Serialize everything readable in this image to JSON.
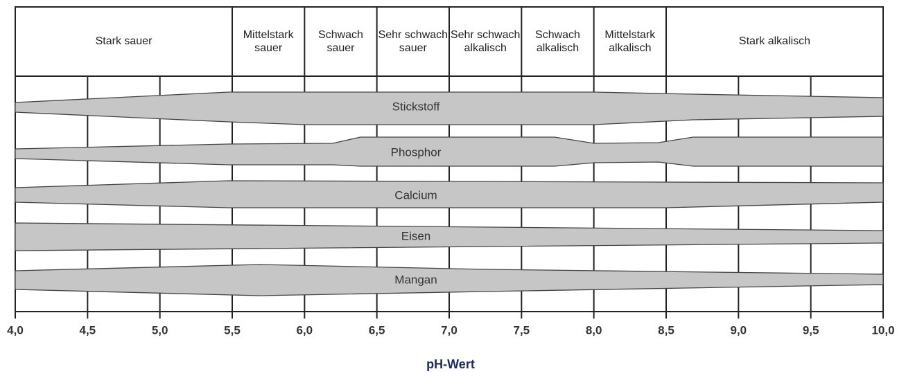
{
  "zones": [
    "Stark sauer",
    "Mittelstark sauer",
    "Schwach sauer",
    "Sehr schwach sauer",
    "Sehr schwach alkalisch",
    "Schwach alkalisch",
    "Mittelstark alkalisch",
    "Stark alkalisch"
  ],
  "nutrients": [
    "Stickstoff",
    "Phosphor",
    "Calcium",
    "Eisen",
    "Mangan"
  ],
  "x_axis": {
    "ticks": [
      "4,0",
      "4,5",
      "5,0",
      "5,5",
      "6,0",
      "6,5",
      "7,0",
      "7,5",
      "8,0",
      "8,5",
      "9,0",
      "9,5",
      "10,0"
    ],
    "title": "pH-Wert"
  }
}
